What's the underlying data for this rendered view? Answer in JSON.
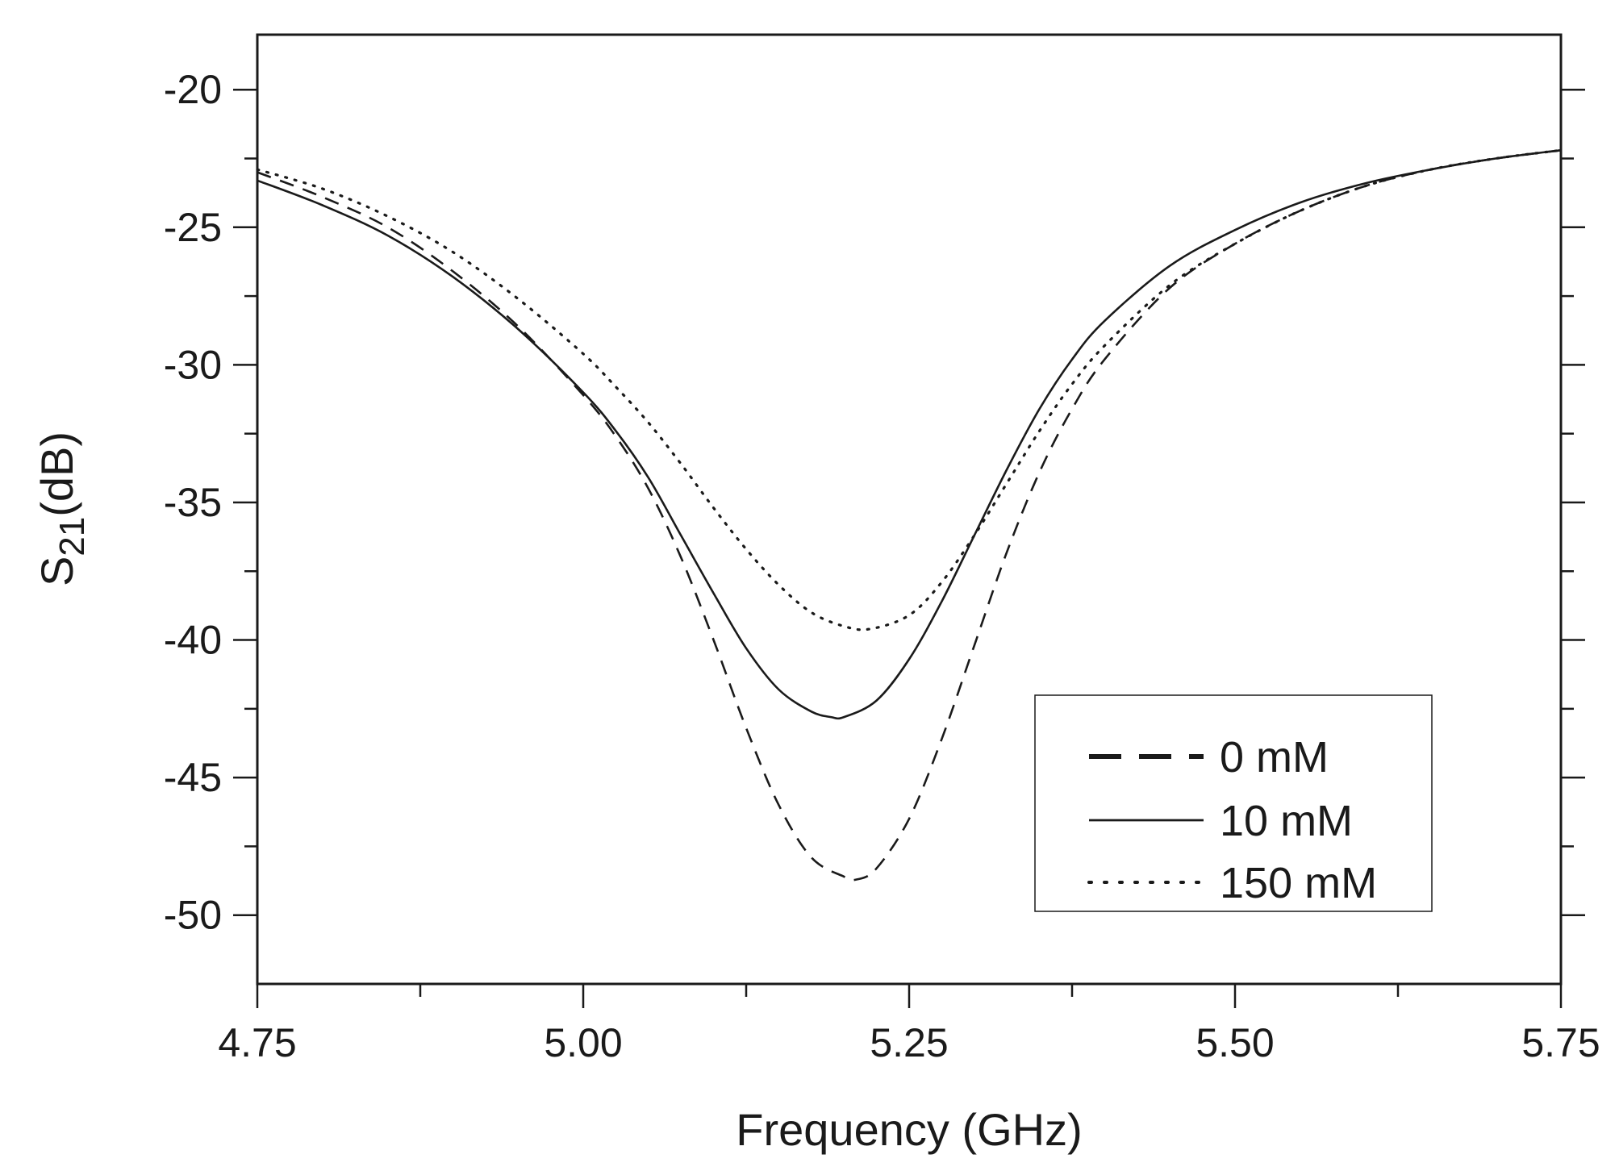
{
  "chart_data": {
    "type": "line",
    "title": "",
    "xlabel": "Frequency (GHz)",
    "ylabel_main": "S",
    "ylabel_sub": "21",
    "ylabel_tail": "(dB)",
    "xlim": [
      4.75,
      5.75
    ],
    "ylim": [
      -52.5,
      -18
    ],
    "xticks": [
      4.75,
      5.0,
      5.25,
      5.5,
      5.75
    ],
    "xtick_labels": [
      "4.75",
      "5.00",
      "5.25",
      "5.50",
      "5.75"
    ],
    "yticks": [
      -20,
      -25,
      -30,
      -35,
      -40,
      -45,
      -50
    ],
    "ytick_labels": [
      "-20",
      "-25",
      "-30",
      "-35",
      "-40",
      "-45",
      "-50"
    ],
    "grid": false,
    "legend_position": "lower-right",
    "line_color": "#1a1a1a",
    "series": [
      {
        "name": "0 mM",
        "style": "dashed",
        "x": [
          4.75,
          4.8,
          4.85,
          4.9,
          4.95,
          5.0,
          5.025,
          5.05,
          5.075,
          5.1,
          5.125,
          5.15,
          5.175,
          5.2,
          5.21,
          5.225,
          5.25,
          5.275,
          5.3,
          5.325,
          5.35,
          5.375,
          5.4,
          5.45,
          5.5,
          5.55,
          5.6,
          5.65,
          5.7,
          5.75
        ],
        "values": [
          -23.0,
          -23.9,
          -25.0,
          -26.6,
          -28.6,
          -31.1,
          -32.6,
          -34.5,
          -37.0,
          -40.0,
          -43.2,
          -46.0,
          -47.9,
          -48.6,
          -48.7,
          -48.3,
          -46.5,
          -43.6,
          -40.2,
          -36.8,
          -33.9,
          -31.6,
          -29.8,
          -27.2,
          -25.6,
          -24.4,
          -23.5,
          -22.9,
          -22.5,
          -22.2
        ]
      },
      {
        "name": "10 mM",
        "style": "solid",
        "x": [
          4.75,
          4.8,
          4.85,
          4.9,
          4.95,
          5.0,
          5.025,
          5.05,
          5.075,
          5.1,
          5.125,
          5.15,
          5.175,
          5.19,
          5.2,
          5.225,
          5.25,
          5.275,
          5.3,
          5.325,
          5.35,
          5.375,
          5.4,
          5.45,
          5.5,
          5.55,
          5.6,
          5.65,
          5.7,
          5.75
        ],
        "values": [
          -23.3,
          -24.2,
          -25.3,
          -26.8,
          -28.7,
          -31.0,
          -32.4,
          -34.1,
          -36.2,
          -38.3,
          -40.3,
          -41.8,
          -42.6,
          -42.8,
          -42.8,
          -42.2,
          -40.7,
          -38.6,
          -36.2,
          -33.8,
          -31.6,
          -29.8,
          -28.4,
          -26.4,
          -25.1,
          -24.1,
          -23.4,
          -22.9,
          -22.5,
          -22.2
        ]
      },
      {
        "name": "150 mM",
        "style": "dotted",
        "x": [
          4.75,
          4.8,
          4.85,
          4.9,
          4.95,
          5.0,
          5.025,
          5.05,
          5.075,
          5.1,
          5.125,
          5.15,
          5.175,
          5.2,
          5.22,
          5.25,
          5.275,
          5.3,
          5.325,
          5.35,
          5.375,
          5.4,
          5.45,
          5.5,
          5.55,
          5.6,
          5.65,
          5.7,
          5.75
        ],
        "values": [
          -22.9,
          -23.6,
          -24.6,
          -25.9,
          -27.6,
          -29.6,
          -30.8,
          -32.1,
          -33.6,
          -35.2,
          -36.7,
          -38.0,
          -39.0,
          -39.5,
          -39.6,
          -39.1,
          -37.9,
          -36.2,
          -34.3,
          -32.4,
          -30.7,
          -29.3,
          -27.1,
          -25.6,
          -24.4,
          -23.5,
          -22.9,
          -22.5,
          -22.2
        ]
      }
    ]
  }
}
